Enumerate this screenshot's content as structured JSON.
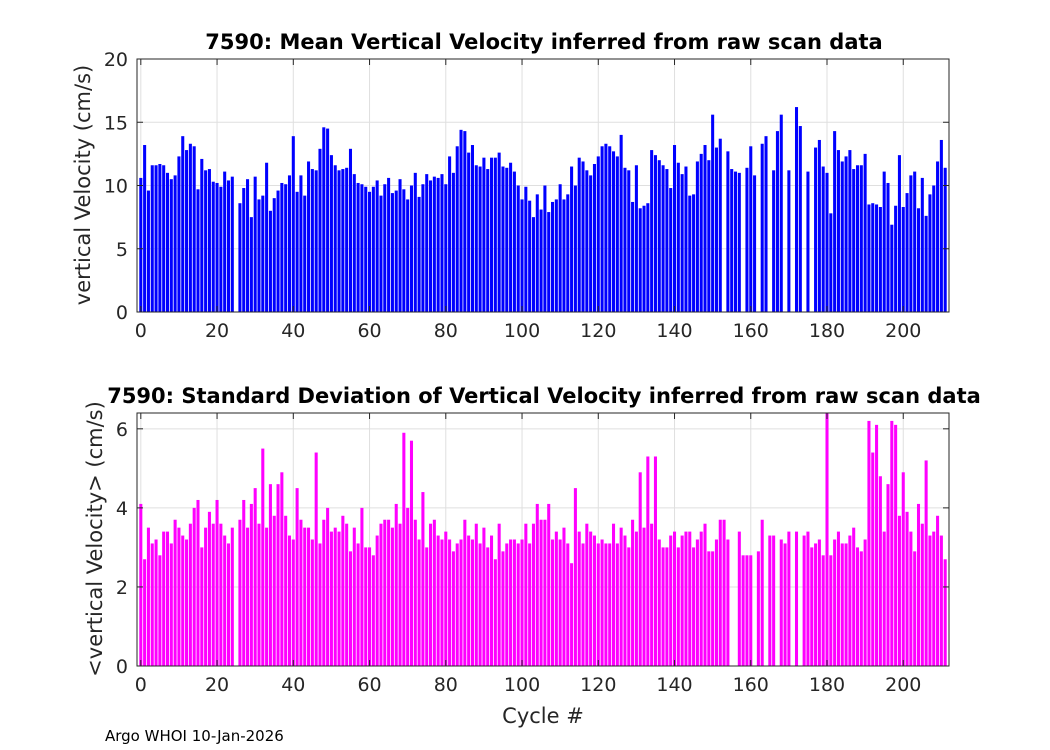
{
  "chart_data": [
    {
      "type": "bar",
      "title": "7590: Mean Vertical Velocity inferred from raw scan data",
      "xlabel": "",
      "ylabel": "vertical Velocity (cm/s)",
      "xlim": [
        -1,
        212
      ],
      "ylim": [
        0,
        20
      ],
      "xticks": [
        0,
        20,
        40,
        60,
        80,
        100,
        120,
        140,
        160,
        180,
        200
      ],
      "yticks": [
        0,
        5,
        10,
        15,
        20
      ],
      "grid": true,
      "color": "#0000ff",
      "x_start": 0,
      "values": [
        10.6,
        13.2,
        9.6,
        11.6,
        11.6,
        11.7,
        11.6,
        11.0,
        10.5,
        10.8,
        12.3,
        13.9,
        12.8,
        13.3,
        13.1,
        9.7,
        12.1,
        11.2,
        11.3,
        10.3,
        10.2,
        9.9,
        11.1,
        10.4,
        10.7,
        0,
        8.6,
        9.8,
        10.5,
        7.5,
        10.7,
        8.9,
        9.2,
        11.8,
        8.0,
        9.0,
        9.6,
        10.2,
        10.1,
        10.8,
        13.9,
        9.5,
        10.8,
        9.2,
        11.9,
        11.3,
        11.2,
        12.9,
        14.6,
        14.5,
        12.4,
        11.6,
        11.2,
        11.3,
        11.4,
        12.9,
        10.9,
        10.2,
        10.1,
        9.9,
        9.5,
        9.9,
        10.4,
        9.2,
        10.1,
        10.6,
        9.4,
        9.6,
        10.5,
        9.7,
        8.9,
        10.0,
        11.0,
        9.1,
        10.1,
        10.9,
        10.4,
        10.7,
        10.6,
        10.9,
        10.1,
        12.3,
        11.0,
        13.1,
        14.4,
        14.3,
        12.6,
        13.2,
        11.6,
        11.5,
        12.2,
        11.3,
        12.2,
        12.2,
        12.6,
        11.5,
        11.4,
        11.8,
        11.1,
        10.0,
        8.9,
        9.9,
        8.8,
        7.5,
        9.3,
        8.1,
        10.0,
        7.9,
        8.7,
        8.9,
        10.1,
        8.9,
        9.3,
        11.5,
        10.0,
        12.2,
        11.9,
        11.2,
        10.8,
        11.7,
        12.3,
        13.1,
        13.3,
        13.1,
        12.7,
        12.3,
        14.0,
        11.4,
        11.2,
        8.7,
        11.6,
        8.2,
        8.4,
        8.6,
        12.8,
        12.4,
        12.0,
        11.6,
        11.3,
        9.8,
        13.2,
        11.8,
        10.9,
        11.5,
        9.2,
        9.3,
        11.9,
        12.5,
        13.2,
        12.0,
        15.6,
        13.0,
        13.7,
        0,
        12.7,
        11.3,
        11.1,
        11.0,
        0,
        11.4,
        13.1,
        10.8,
        0,
        13.3,
        13.9,
        0,
        11.2,
        14.3,
        15.6,
        0,
        11.2,
        0,
        16.2,
        14.7,
        0,
        11.1,
        0,
        13.0,
        13.6,
        11.5,
        11.0,
        7.8,
        14.3,
        12.8,
        11.9,
        12.3,
        12.8,
        11.3,
        11.6,
        11.6,
        12.5,
        8.5,
        8.6,
        8.5,
        8.3,
        11.1,
        10.2,
        6.9,
        8.4,
        12.4,
        8.3,
        9.4,
        10.8,
        11.1,
        8.2,
        10.6,
        7.6,
        9.3,
        10.0,
        11.9,
        13.6,
        11.4
      ]
    },
    {
      "type": "bar",
      "title": "7590: Standard Deviation of Vertical Velocity inferred from raw scan data",
      "xlabel": "Cycle #",
      "ylabel": "<vertical Velocity> (cm/s)",
      "xlim": [
        -1,
        212
      ],
      "ylim": [
        0,
        6.4
      ],
      "xticks": [
        0,
        20,
        40,
        60,
        80,
        100,
        120,
        140,
        160,
        180,
        200
      ],
      "yticks": [
        0,
        2,
        4,
        6
      ],
      "grid": true,
      "color": "#ff00ff",
      "x_start": 0,
      "values": [
        4.1,
        2.7,
        3.5,
        3.1,
        3.2,
        2.8,
        3.4,
        3.4,
        3.1,
        3.7,
        3.5,
        3.3,
        3.2,
        3.6,
        4.0,
        4.2,
        3.0,
        3.5,
        3.9,
        3.6,
        4.2,
        3.6,
        3.3,
        3.1,
        3.5,
        0,
        3.7,
        4.2,
        3.5,
        4.1,
        4.5,
        3.6,
        5.5,
        3.5,
        4.6,
        3.8,
        4.6,
        4.9,
        3.8,
        3.3,
        3.2,
        4.5,
        3.7,
        3.5,
        3.5,
        3.2,
        5.4,
        3.1,
        3.7,
        4.0,
        3.4,
        3.5,
        3.4,
        3.8,
        3.6,
        2.9,
        3.5,
        3.1,
        4.0,
        3.0,
        3.0,
        2.8,
        3.3,
        3.6,
        3.7,
        3.7,
        3.5,
        4.1,
        3.6,
        5.9,
        4.0,
        5.7,
        3.7,
        3.2,
        4.4,
        3.0,
        3.6,
        3.7,
        3.3,
        3.2,
        3.4,
        3.2,
        2.9,
        3.1,
        3.2,
        3.7,
        3.3,
        3.2,
        3.6,
        3.1,
        3.5,
        3.0,
        3.3,
        2.7,
        3.6,
        2.9,
        3.1,
        3.2,
        3.2,
        3.1,
        3.2,
        3.6,
        3.1,
        3.6,
        4.1,
        3.7,
        3.7,
        4.1,
        3.2,
        3.4,
        3.2,
        3.5,
        3.1,
        2.6,
        4.5,
        3.4,
        3.1,
        3.6,
        3.4,
        3.3,
        3.1,
        3.2,
        3.1,
        3.1,
        3.6,
        3.1,
        3.5,
        3.3,
        3.0,
        3.7,
        3.4,
        4.9,
        3.5,
        5.3,
        3.6,
        5.3,
        3.2,
        3.0,
        3.0,
        3.3,
        3.4,
        3.0,
        3.3,
        3.4,
        3.4,
        3.0,
        3.2,
        3.4,
        3.6,
        2.9,
        2.9,
        3.2,
        3.7,
        3.7,
        3.2,
        0,
        0,
        3.4,
        2.8,
        2.8,
        2.8,
        0,
        2.9,
        3.7,
        0,
        3.3,
        3.3,
        0,
        3.2,
        3.1,
        3.4,
        0,
        3.4,
        0,
        3.3,
        3.4,
        3.0,
        3.1,
        3.2,
        2.8,
        6.4,
        2.8,
        3.2,
        3.4,
        3.1,
        3.1,
        3.3,
        3.5,
        3.0,
        2.9,
        3.2,
        6.2,
        5.4,
        6.1,
        4.8,
        3.4,
        4.6,
        6.2,
        6.1,
        3.8,
        4.9,
        3.9,
        3.4,
        2.9,
        4.1,
        3.6,
        5.2,
        3.3,
        3.4,
        3.8,
        3.3,
        2.7
      ]
    }
  ],
  "footer": "Argo WHOI 10-Jan-2026"
}
